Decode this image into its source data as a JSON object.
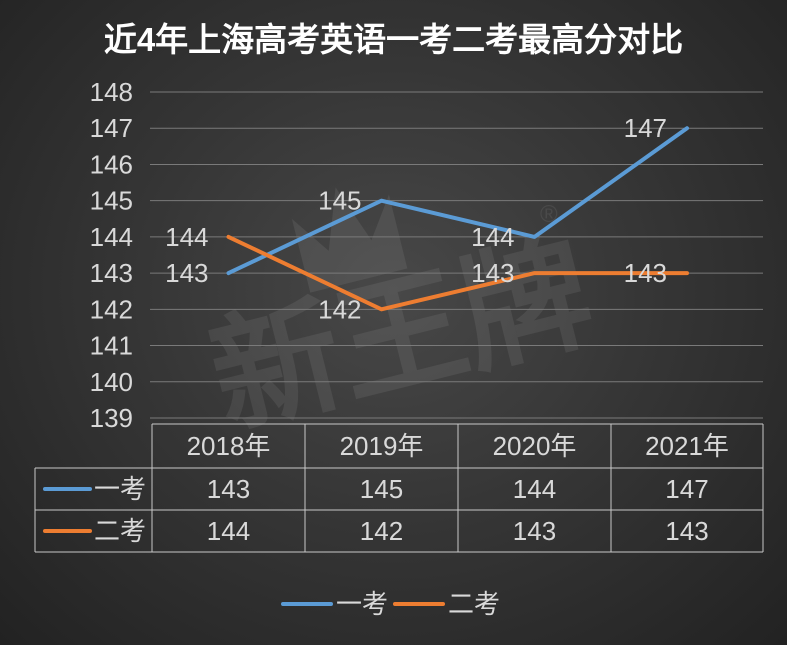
{
  "watermark": {
    "text": "新王牌",
    "mark": "®"
  },
  "chart_data": {
    "type": "line",
    "title": "近4年上海高考英语一考二考最高分对比",
    "categories": [
      "2018年",
      "2019年",
      "2020年",
      "2021年"
    ],
    "series": [
      {
        "name": "一考",
        "values": [
          143,
          145,
          144,
          147
        ],
        "color": "#5b9bd5"
      },
      {
        "name": "二考",
        "values": [
          144,
          142,
          143,
          143
        ],
        "color": "#ed7d31"
      }
    ],
    "ylim": [
      139,
      148
    ],
    "yticks": [
      139,
      140,
      141,
      142,
      143,
      144,
      145,
      146,
      147,
      148
    ],
    "grid": true,
    "legend": "bottom",
    "data_table": true,
    "text_color": "#d9d9d9",
    "gridline_color": "#7a7a7a"
  }
}
